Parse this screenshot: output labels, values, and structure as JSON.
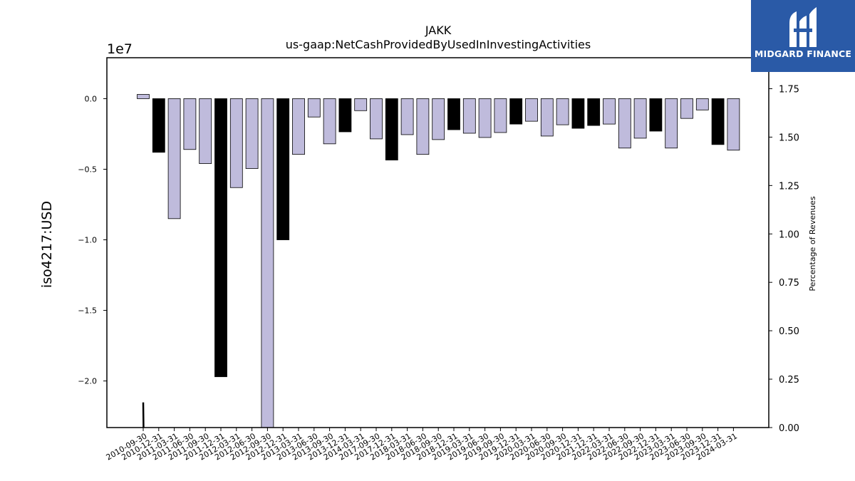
{
  "chart_data": {
    "type": "bar",
    "title": "JAKK",
    "subtitle": "us-gaap:NetCashProvidedByUsedInInvestingActivities",
    "ylabel": "iso4217:USD",
    "y_multiplier_label": "1e7",
    "y2label": "Percentage of Revenues",
    "ylim": [
      -23300000.0,
      2900000.0
    ],
    "y_ticks": [
      0,
      -5000000,
      -10000000,
      -15000000,
      -20000000
    ],
    "y_tick_labels": [
      "0.0",
      "−0.5",
      "−1.0",
      "−1.5",
      "−2.0"
    ],
    "y2lim": [
      0,
      1.91
    ],
    "y2_ticks": [
      0,
      0.25,
      0.5,
      0.75,
      1.0,
      1.25,
      1.5,
      1.75
    ],
    "y2_tick_labels": [
      "0.00",
      "0.25",
      "0.50",
      "0.75",
      "1.00",
      "1.25",
      "1.50",
      "1.75"
    ],
    "grid": false,
    "colors": {
      "quarter": "#bfbbdc",
      "annual": "#000000",
      "edge": "#000000"
    },
    "categories": [
      "2010-09-30",
      "2010-12-31",
      "2011-03-31",
      "2011-06-30",
      "2011-09-30",
      "2011-12-31",
      "2012-03-31",
      "2012-06-30",
      "2012-09-30",
      "2012-12-31",
      "2013-03-31",
      "2013-06-30",
      "2013-09-30",
      "2013-12-31",
      "2014-03-31",
      "2017-09-30",
      "2017-12-31",
      "2018-03-31",
      "2018-06-30",
      "2018-09-30",
      "2018-12-31",
      "2019-03-31",
      "2019-06-30",
      "2019-09-30",
      "2019-12-31",
      "2020-03-31",
      "2020-06-30",
      "2020-09-30",
      "2020-12-31",
      "2021-12-31",
      "2022-03-31",
      "2022-06-30",
      "2022-09-30",
      "2022-12-31",
      "2023-03-31",
      "2023-06-30",
      "2023-09-30",
      "2023-12-31",
      "2024-03-31"
    ],
    "values": [
      300000,
      -3800000,
      -8500000,
      -3600000,
      -4600000,
      -19700000,
      -6300000,
      -4950000,
      -23300000,
      -10000000,
      -3950000,
      -1300000,
      -3200000,
      -2350000,
      -850000,
      -2850000,
      -4350000,
      -2550000,
      -3950000,
      -2900000,
      -2200000,
      -2450000,
      -2750000,
      -2400000,
      -1800000,
      -1600000,
      -2650000,
      -1850000,
      -2100000,
      -1900000,
      -1800000,
      -3500000,
      -2800000,
      -2300000,
      -3500000,
      -1400000,
      -800000,
      -3250000,
      -3650000
    ],
    "annual": [
      false,
      true,
      false,
      false,
      false,
      true,
      false,
      false,
      false,
      true,
      false,
      false,
      false,
      true,
      false,
      false,
      true,
      false,
      false,
      false,
      true,
      false,
      false,
      false,
      true,
      false,
      false,
      false,
      true,
      true,
      false,
      false,
      false,
      true,
      false,
      false,
      false,
      true,
      false
    ],
    "percentage_line": {
      "x": [
        0,
        0.02
      ],
      "y": [
        0.13,
        0
      ]
    }
  },
  "logo": {
    "text": "MIDGARD FINANCE",
    "icon": "midgard-logo-icon"
  }
}
